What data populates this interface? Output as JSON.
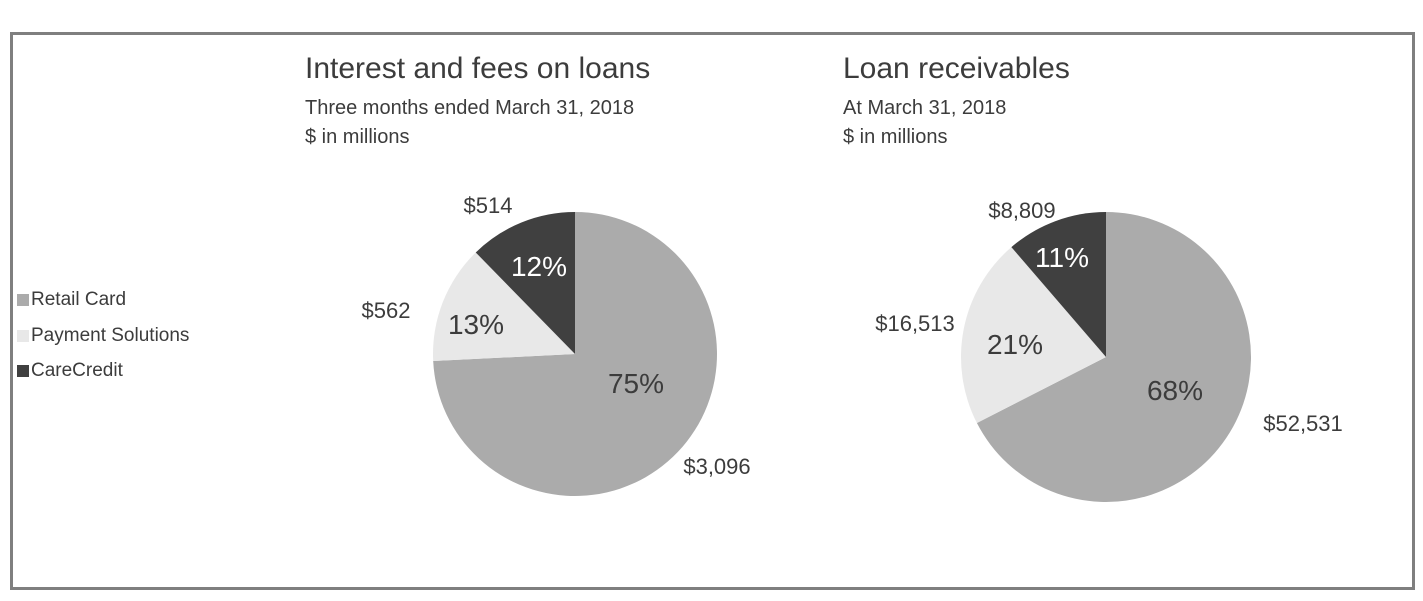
{
  "figure": {
    "background_color": "#ffffff",
    "border_color": "#7f7f7f"
  },
  "legend": {
    "items": [
      {
        "label": "Retail Card",
        "color": "#ababab"
      },
      {
        "label": "Payment Solutions",
        "color": "#e8e8e8"
      },
      {
        "label": "CareCredit",
        "color": "#404040"
      }
    ]
  },
  "chart_data": [
    {
      "type": "pie",
      "title": "Interest and fees on loans",
      "subtitle": "Three months ended March 31, 2018",
      "units": "$ in millions",
      "categories": [
        "Retail Card",
        "Payment Solutions",
        "CareCredit"
      ],
      "values": [
        3096,
        562,
        514
      ],
      "percent_labels": [
        "75%",
        "13%",
        "12%"
      ],
      "value_labels": [
        "$3,096",
        "$562",
        "$514"
      ],
      "colors": [
        "#ababab",
        "#e8e8e8",
        "#404040"
      ],
      "start_angle_deg": 0,
      "direction": "clockwise",
      "legend_position": "left"
    },
    {
      "type": "pie",
      "title": "Loan receivables",
      "subtitle": "At March 31, 2018",
      "units": "$ in millions",
      "categories": [
        "Retail Card",
        "Payment Solutions",
        "CareCredit"
      ],
      "values": [
        52531,
        16513,
        8809
      ],
      "percent_labels": [
        "68%",
        "21%",
        "11%"
      ],
      "value_labels": [
        "$52,531",
        "$16,513",
        "$8,809"
      ],
      "colors": [
        "#ababab",
        "#e8e8e8",
        "#404040"
      ],
      "start_angle_deg": 0,
      "direction": "clockwise",
      "legend_position": "left"
    }
  ]
}
